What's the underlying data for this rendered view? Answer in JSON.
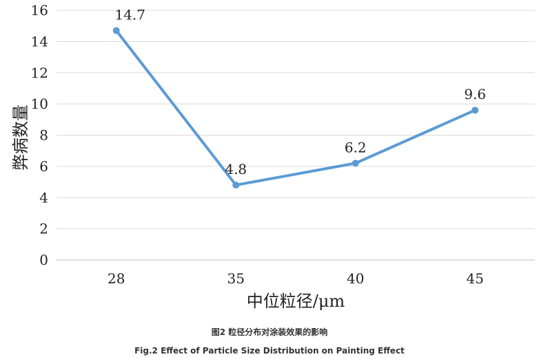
{
  "chart_data": {
    "type": "line",
    "categories": [
      "28",
      "35",
      "40",
      "45"
    ],
    "values": [
      14.7,
      4.8,
      6.2,
      9.6
    ],
    "data_labels": [
      "14.7",
      "4.8",
      "6.2",
      "9.6"
    ],
    "xlabel": "中位粒径/μm",
    "ylabel": "弊病数量",
    "ylim": [
      0,
      16
    ],
    "yticks": [
      0,
      2,
      4,
      6,
      8,
      10,
      12,
      14,
      16
    ],
    "grid": true,
    "line_color": "#5B9BD5",
    "grid_color": "#D9D9D9"
  },
  "caption": {
    "chinese": "图2 粒径分布对涂装效果的影响",
    "english": "Fig.2 Effect of Particle Size Distribution on Painting Effect"
  }
}
